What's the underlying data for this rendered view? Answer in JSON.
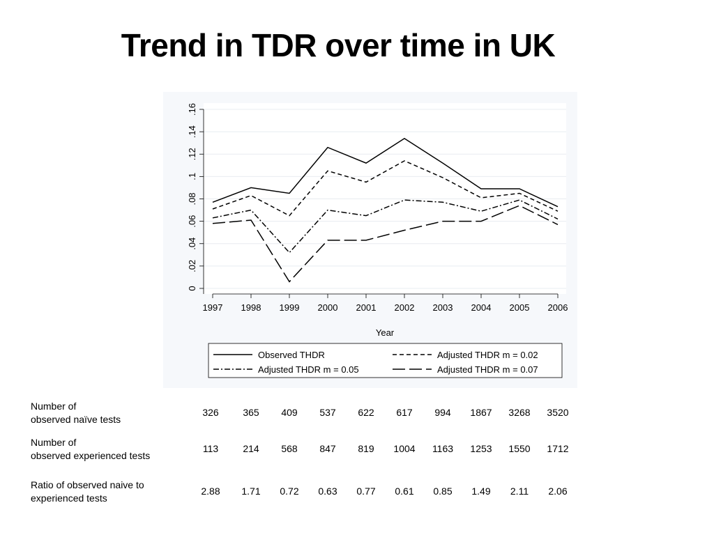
{
  "chart_data": {
    "type": "line",
    "title": "Trend in TDR over time in UK",
    "xlabel": "Year",
    "ylabel": "",
    "x": [
      1997,
      1998,
      1999,
      2000,
      2001,
      2002,
      2003,
      2004,
      2005,
      2006
    ],
    "x_tick_labels": [
      "1997",
      "1998",
      "1999",
      "2000",
      "2001",
      "2002",
      "2003",
      "2004",
      "2005",
      "2006"
    ],
    "ylim": [
      0,
      0.16
    ],
    "y_ticks": [
      0,
      0.02,
      0.04,
      0.06,
      0.08,
      0.1,
      0.12,
      0.14,
      0.16
    ],
    "y_tick_labels": [
      "0",
      ".02",
      ".04",
      ".06",
      ".08",
      ".1",
      ".12",
      ".14",
      ".16"
    ],
    "grid": true,
    "legend_position": "bottom",
    "series": [
      {
        "name": "Observed THDR",
        "dash": "solid",
        "values": [
          0.077,
          0.09,
          0.085,
          0.126,
          0.112,
          0.134,
          0.112,
          0.089,
          0.089,
          0.073
        ]
      },
      {
        "name": "Adjusted THDR m = 0.02",
        "dash": "short-dash",
        "values": [
          0.071,
          0.083,
          0.065,
          0.105,
          0.095,
          0.114,
          0.099,
          0.081,
          0.085,
          0.069
        ]
      },
      {
        "name": "Adjusted THDR m = 0.05",
        "dash": "dash-dot",
        "values": [
          0.063,
          0.07,
          0.032,
          0.07,
          0.065,
          0.079,
          0.077,
          0.069,
          0.079,
          0.062
        ]
      },
      {
        "name": "Adjusted THDR m = 0.07",
        "dash": "long-dash",
        "values": [
          0.058,
          0.061,
          0.006,
          0.043,
          0.043,
          0.052,
          0.06,
          0.06,
          0.074,
          0.057
        ]
      }
    ]
  },
  "table": {
    "rows": [
      {
        "label_lines": [
          "Number of",
          "observed naïve tests"
        ],
        "values": [
          "326",
          "365",
          "409",
          "537",
          "622",
          "617",
          "994",
          "1867",
          "3268",
          "3520"
        ]
      },
      {
        "label_lines": [
          "Number of",
          "observed experienced tests"
        ],
        "values": [
          "113",
          "214",
          "568",
          "847",
          "819",
          "1004",
          "1163",
          "1253",
          "1550",
          "1712"
        ]
      },
      {
        "label_lines": [
          "Ratio of observed naive to",
          "experienced tests"
        ],
        "values": [
          "2.88",
          "1.71",
          "0.72",
          "0.63",
          "0.77",
          "0.61",
          "0.85",
          "1.49",
          "2.11",
          "2.06"
        ]
      }
    ]
  }
}
